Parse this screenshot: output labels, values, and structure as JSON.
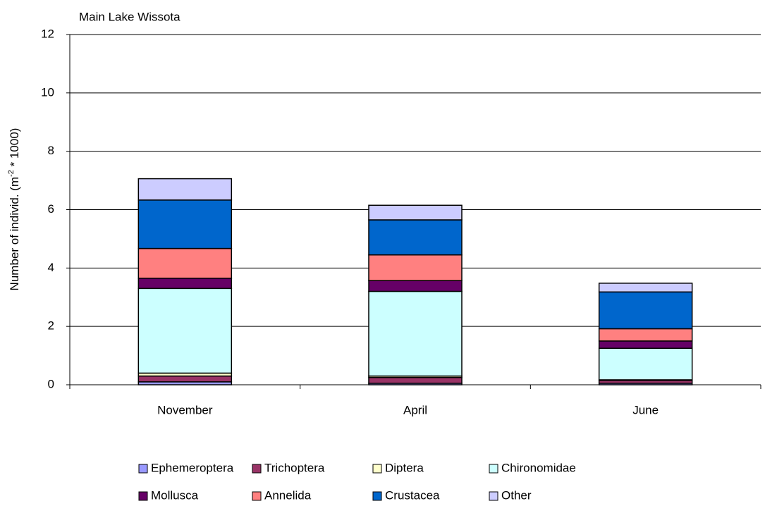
{
  "chart_data": {
    "type": "stacked_bar",
    "title": "Main Lake Wissota",
    "ylabel": [
      "Number of individ. (m",
      "-2",
      " * 1000)"
    ],
    "categories": [
      "November",
      "April",
      "June"
    ],
    "series": [
      {
        "name": "Ephemeroptera",
        "color": "#9999ff",
        "values": [
          0.1,
          0.05,
          0.05
        ]
      },
      {
        "name": "Trichoptera",
        "color": "#993366",
        "values": [
          0.2,
          0.2,
          0.1
        ]
      },
      {
        "name": "Diptera",
        "color": "#ffffcc",
        "values": [
          0.1,
          0.05,
          0.02
        ]
      },
      {
        "name": "Chironomidae",
        "color": "#ccffff",
        "values": [
          2.9,
          2.9,
          1.08
        ]
      },
      {
        "name": "Mollusca",
        "color": "#660066",
        "values": [
          0.35,
          0.37,
          0.25
        ]
      },
      {
        "name": "Annelida",
        "color": "#ff8080",
        "values": [
          1.02,
          0.88,
          0.42
        ]
      },
      {
        "name": "Crustacea",
        "color": "#0066cc",
        "values": [
          1.66,
          1.2,
          1.26
        ]
      },
      {
        "name": "Other",
        "color": "#ccccff",
        "values": [
          0.73,
          0.5,
          0.3
        ]
      }
    ],
    "ylim": [
      0,
      12
    ],
    "yticks": [
      0,
      2,
      4,
      6,
      8,
      10,
      12
    ],
    "grid": true,
    "legend": "bottom"
  }
}
